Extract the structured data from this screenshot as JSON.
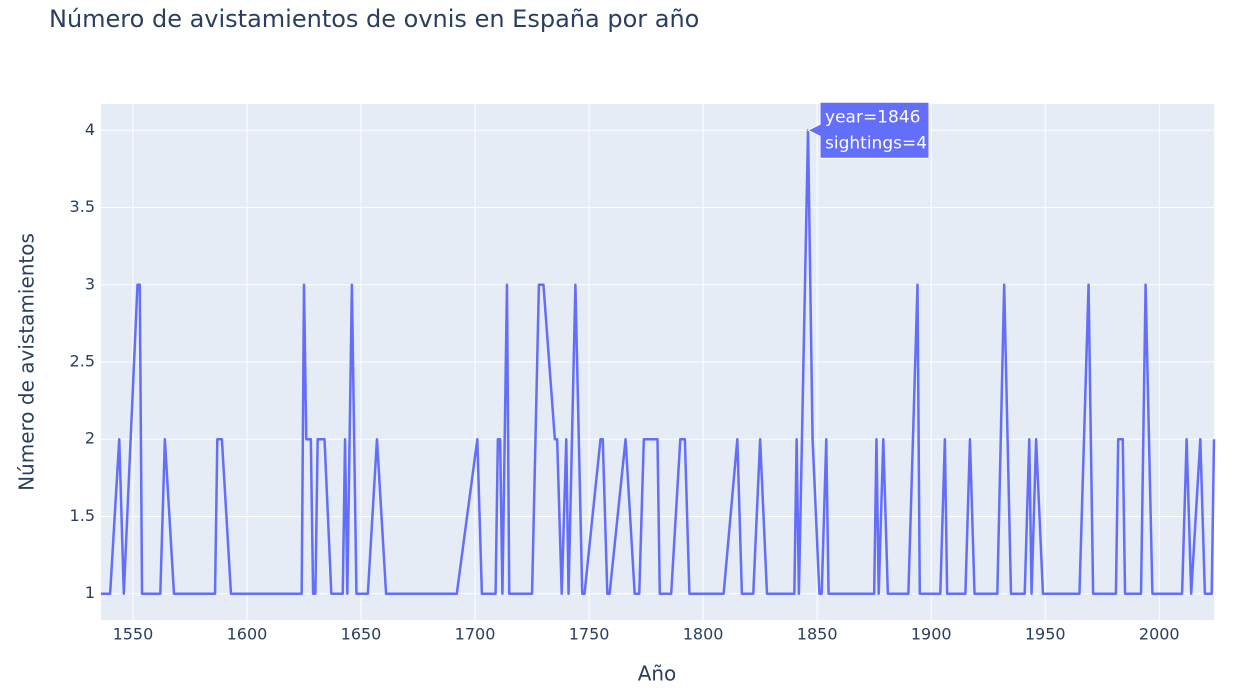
{
  "chart_data": {
    "type": "line",
    "title": "Número de avistamientos de ovnis en España por año",
    "x_label": "Año",
    "y_label": "Número de avistamientos",
    "x": [
      1536,
      1540,
      1544,
      1546,
      1552,
      1553,
      1554,
      1562,
      1564,
      1568,
      1586,
      1587,
      1589,
      1593,
      1624,
      1625,
      1626,
      1628,
      1629,
      1630,
      1631,
      1634,
      1637,
      1642,
      1643,
      1644,
      1646,
      1648,
      1653,
      1657,
      1661,
      1692,
      1701,
      1703,
      1709,
      1710,
      1711,
      1712,
      1714,
      1715,
      1725,
      1728,
      1730,
      1735,
      1736,
      1738,
      1740,
      1741,
      1744,
      1747,
      1748,
      1755,
      1756,
      1758,
      1759,
      1766,
      1770,
      1772,
      1774,
      1780,
      1781,
      1786,
      1790,
      1792,
      1794,
      1809,
      1815,
      1817,
      1822,
      1825,
      1828,
      1840,
      1841,
      1842,
      1846,
      1848,
      1851,
      1852,
      1854,
      1855,
      1875,
      1876,
      1877,
      1879,
      1881,
      1890,
      1894,
      1895,
      1904,
      1906,
      1907,
      1915,
      1917,
      1919,
      1929,
      1932,
      1935,
      1941,
      1943,
      1944,
      1946,
      1949,
      1965,
      1969,
      1971,
      1981,
      1982,
      1984,
      1985,
      1992,
      1994,
      1997,
      2010,
      2012,
      2014,
      2018,
      2020,
      2023,
      2024
    ],
    "values": [
      1,
      1,
      2,
      1,
      3,
      3,
      1,
      1,
      2,
      1,
      1,
      2,
      2,
      1,
      1,
      3,
      2,
      2,
      1,
      1,
      2,
      2,
      1,
      1,
      2,
      1,
      3,
      1,
      1,
      2,
      1,
      1,
      2,
      1,
      1,
      2,
      2,
      1,
      3,
      1,
      1,
      3,
      3,
      2,
      2,
      1,
      2,
      1,
      3,
      1,
      1,
      2,
      2,
      1,
      1,
      2,
      1,
      1,
      2,
      2,
      1,
      1,
      2,
      2,
      1,
      1,
      2,
      1,
      1,
      2,
      1,
      1,
      2,
      1,
      4,
      2,
      1,
      1,
      2,
      1,
      1,
      2,
      1,
      2,
      1,
      1,
      3,
      1,
      1,
      2,
      1,
      1,
      2,
      1,
      1,
      3,
      1,
      1,
      2,
      1,
      2,
      1,
      1,
      3,
      1,
      1,
      2,
      2,
      1,
      1,
      3,
      1,
      1,
      2,
      1,
      2,
      1,
      1,
      2
    ],
    "color": "#636efa",
    "xlim": [
      1536,
      2024
    ],
    "xticks": [
      1550,
      1600,
      1650,
      1700,
      1750,
      1800,
      1850,
      1900,
      1950,
      2000
    ],
    "ylim": [
      0.83,
      4.17
    ],
    "yticks": [
      1,
      1.5,
      2,
      2.5,
      3,
      3.5,
      4
    ],
    "grid": true,
    "hover": [
      "year=1846",
      "sightings=4"
    ]
  }
}
